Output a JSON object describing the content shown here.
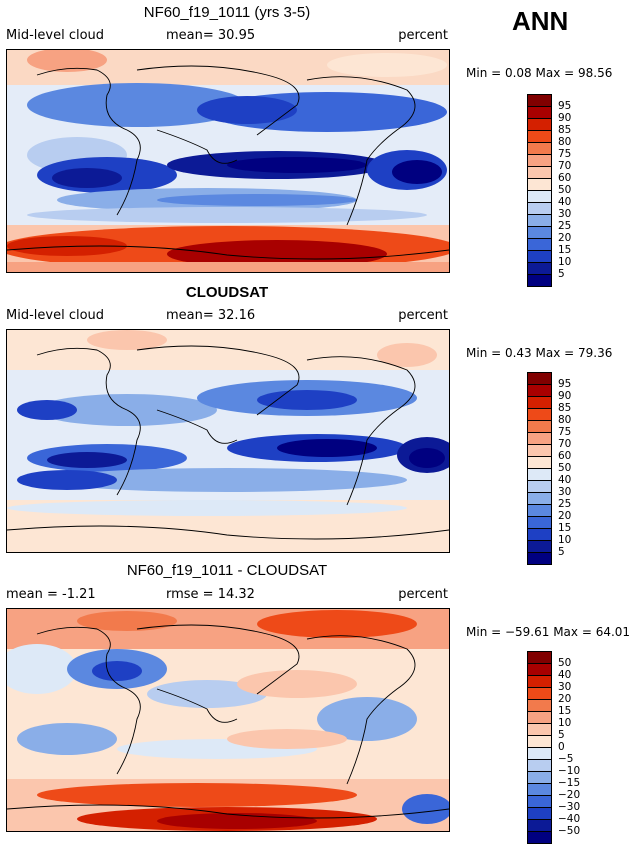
{
  "season": "ANN",
  "units": "percent",
  "panels": [
    {
      "id": "model",
      "title": "NF60_f19_1011 (yrs 3-5)",
      "left_label": "Mid-level cloud",
      "middle_label": "mean=  30.95",
      "right_label": "percent",
      "minmax": "Min =    0.08 Max =  98.56",
      "colorbar_labels": [
        "95",
        "90",
        "85",
        "80",
        "75",
        "70",
        "60",
        "50",
        "40",
        "30",
        "25",
        "20",
        "15",
        "10",
        "5"
      ]
    },
    {
      "id": "obs",
      "title": "CLOUDSAT",
      "left_label": "Mid-level cloud",
      "middle_label": "mean=  32.16",
      "right_label": "percent",
      "minmax": "Min =   0.43 Max =  79.36",
      "colorbar_labels": [
        "95",
        "90",
        "85",
        "80",
        "75",
        "70",
        "60",
        "50",
        "40",
        "30",
        "25",
        "20",
        "15",
        "10",
        "5"
      ]
    },
    {
      "id": "diff",
      "title": "NF60_f19_1011 - CLOUDSAT",
      "left_label": "mean =  -1.21",
      "middle_label": "rmse =  14.32",
      "right_label": "percent",
      "minmax": "Min = −59.61 Max =  64.01",
      "colorbar_labels": [
        "50",
        "40",
        "30",
        "20",
        "15",
        "10",
        "5",
        "0",
        "−5",
        "−10",
        "−15",
        "−20",
        "−30",
        "−40",
        "−50"
      ]
    }
  ],
  "palette": [
    "#800000",
    "#a80000",
    "#d42000",
    "#ee4a18",
    "#f27a4c",
    "#f7a282",
    "#fbc6ad",
    "#fde6d4",
    "#dde9f7",
    "#b8cdf0",
    "#8aaee8",
    "#5b88e0",
    "#3a66d8",
    "#1e40c4",
    "#0c1a96",
    "#000080"
  ]
}
